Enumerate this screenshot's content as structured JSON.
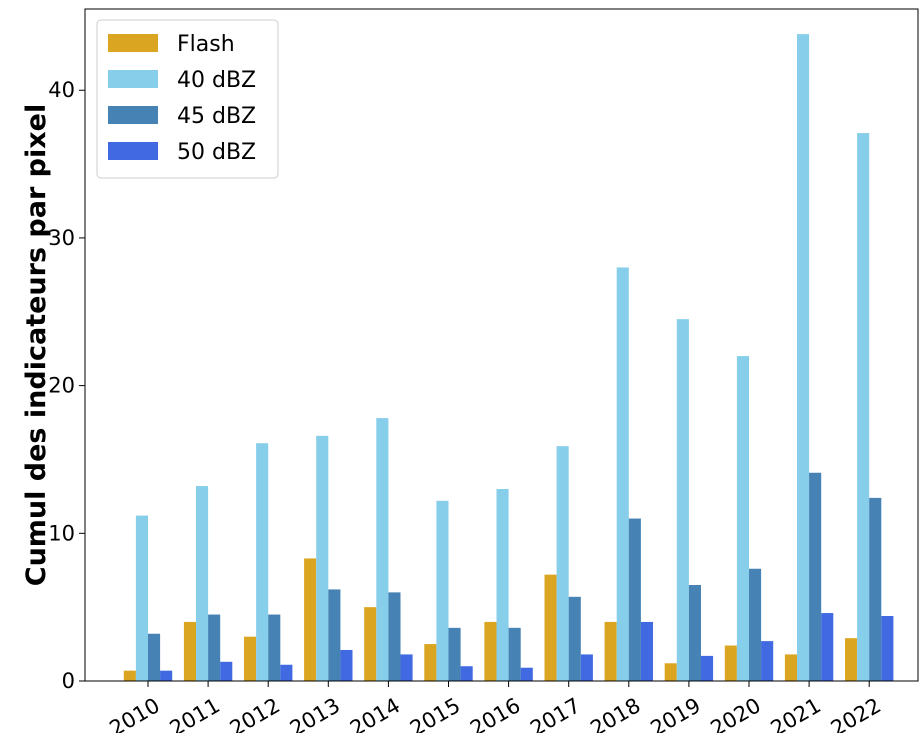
{
  "chart_data": {
    "type": "bar",
    "title": "",
    "xlabel": "",
    "ylabel": "Cumul des indicateurs par pixel",
    "categories": [
      "2010",
      "2011",
      "2012",
      "2013",
      "2014",
      "2015",
      "2016",
      "2017",
      "2018",
      "2019",
      "2020",
      "2021",
      "2022"
    ],
    "series": [
      {
        "name": "Flash",
        "color": "#DAA520",
        "values": [
          0.7,
          4.0,
          3.0,
          8.3,
          5.0,
          2.5,
          4.0,
          7.2,
          4.0,
          1.2,
          2.4,
          1.8,
          2.9
        ]
      },
      {
        "name": "40 dBZ",
        "color": "#87CEEB",
        "values": [
          11.2,
          13.2,
          16.1,
          16.6,
          17.8,
          12.2,
          13.0,
          15.9,
          28.0,
          24.5,
          22.0,
          43.8,
          37.1
        ]
      },
      {
        "name": "45 dBZ",
        "color": "#4682B4",
        "values": [
          3.2,
          4.5,
          4.5,
          6.2,
          6.0,
          3.6,
          3.6,
          5.7,
          11.0,
          6.5,
          7.6,
          14.1,
          12.4
        ]
      },
      {
        "name": "50 dBZ",
        "color": "#4169E1",
        "values": [
          0.7,
          1.3,
          1.1,
          2.1,
          1.8,
          1.0,
          0.9,
          1.8,
          4.0,
          1.7,
          2.7,
          4.6,
          4.4
        ]
      }
    ],
    "ylim": [
      0,
      45.5
    ],
    "yticks": [
      0,
      10,
      20,
      30,
      40
    ],
    "xtick_rotation": 30,
    "grid": false,
    "legend": "top-left"
  }
}
